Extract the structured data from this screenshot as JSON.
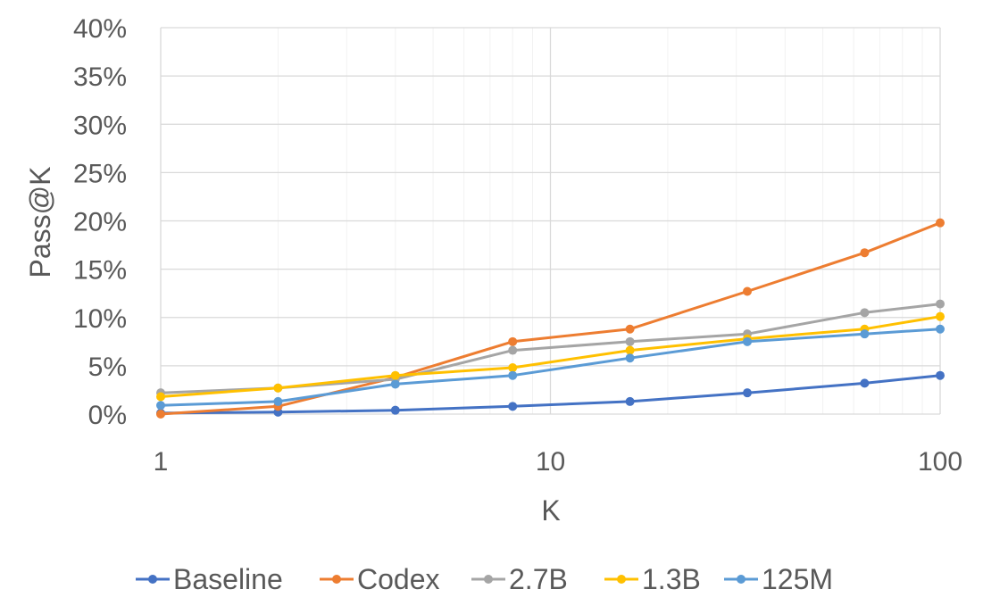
{
  "chart_data": {
    "type": "line",
    "xscale": "log",
    "x": [
      1,
      2,
      4,
      8,
      16,
      32,
      64,
      100
    ],
    "xlim": [
      1,
      100
    ],
    "xticks": [
      1,
      10,
      100
    ],
    "xtick_labels": [
      "1",
      "10",
      "100"
    ],
    "ylim": [
      0,
      40
    ],
    "yticks": [
      0,
      5,
      10,
      15,
      20,
      25,
      30,
      35,
      40
    ],
    "ytick_labels": [
      "0%",
      "5%",
      "10%",
      "15%",
      "20%",
      "25%",
      "30%",
      "35%",
      "40%"
    ],
    "xlabel": "K",
    "ylabel": "Pass@K",
    "grid": true,
    "legend_position": "bottom",
    "series": [
      {
        "name": "Baseline",
        "color": "#4472C4",
        "values": [
          0.1,
          0.2,
          0.4,
          0.8,
          1.3,
          2.2,
          3.2,
          4.0
        ]
      },
      {
        "name": "Codex",
        "color": "#ED7D31",
        "values": [
          0.0,
          0.8,
          3.8,
          7.5,
          8.8,
          12.7,
          16.7,
          19.8
        ]
      },
      {
        "name": "2.7B",
        "color": "#A5A5A5",
        "values": [
          2.2,
          2.7,
          3.6,
          6.6,
          7.5,
          8.3,
          10.5,
          11.4
        ]
      },
      {
        "name": "1.3B",
        "color": "#FFC000",
        "values": [
          1.8,
          2.7,
          4.0,
          4.8,
          6.6,
          7.8,
          8.8,
          10.1
        ]
      },
      {
        "name": "125M",
        "color": "#5B9BD5",
        "values": [
          0.9,
          1.3,
          3.1,
          4.0,
          5.8,
          7.5,
          8.3,
          8.8
        ]
      }
    ]
  }
}
